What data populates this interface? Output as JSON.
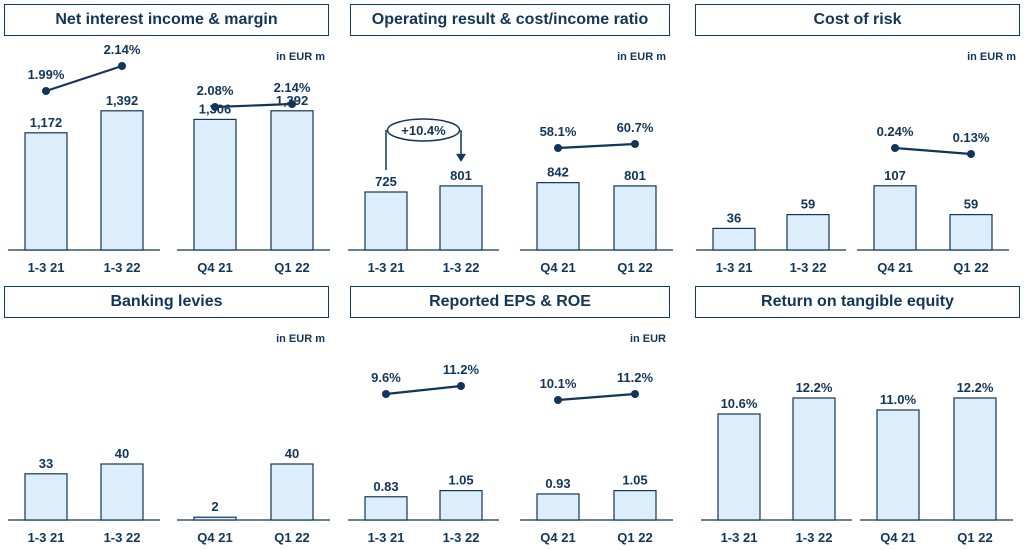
{
  "chart_data": [
    {
      "type": "bar",
      "title": "Net interest income & margin",
      "unit": "in EUR m",
      "groups": [
        {
          "categories": [
            "1-3 21",
            "1-3 22"
          ],
          "values": [
            1172,
            1392
          ],
          "value_labels": [
            "1,172",
            "1,392"
          ],
          "ratio": [
            1.99,
            2.14
          ],
          "ratio_labels": [
            "1.99%",
            "2.14%"
          ],
          "ylim": [
            0,
            1500
          ],
          "ratio_ylim": [
            0,
            2.5
          ]
        },
        {
          "categories": [
            "Q4 21",
            "Q1 22"
          ],
          "values": [
            1306,
            1392
          ],
          "value_labels": [
            "1,306",
            "1,392"
          ],
          "ratio": [
            2.08,
            2.14
          ],
          "ratio_labels": [
            "2.08%",
            "2.14%"
          ],
          "ylim": [
            0,
            1500
          ],
          "ratio_ylim": [
            0,
            2.5
          ]
        }
      ]
    },
    {
      "type": "bar",
      "title": "Operating result & cost/income ratio",
      "unit": "in EUR m",
      "growth_label": "+10.4%",
      "groups": [
        {
          "categories": [
            "1-3 21",
            "1-3 22"
          ],
          "values": [
            725,
            801
          ],
          "value_labels": [
            "725",
            "801"
          ],
          "ylim": [
            0,
            1000
          ]
        },
        {
          "categories": [
            "Q4 21",
            "Q1 22"
          ],
          "values": [
            842,
            801
          ],
          "value_labels": [
            "842",
            "801"
          ],
          "ratio": [
            58.1,
            60.7
          ],
          "ratio_labels": [
            "58.1%",
            "60.7%"
          ],
          "ylim": [
            0,
            1000
          ],
          "ratio_ylim": [
            0,
            80
          ]
        }
      ]
    },
    {
      "type": "bar",
      "title": "Cost of risk",
      "unit": "in EUR m",
      "groups": [
        {
          "categories": [
            "1-3 21",
            "1-3 22"
          ],
          "values": [
            36,
            59
          ],
          "value_labels": [
            "36",
            "59"
          ],
          "ylim": [
            0,
            200
          ]
        },
        {
          "categories": [
            "Q4 21",
            "Q1 22"
          ],
          "values": [
            107,
            59
          ],
          "value_labels": [
            "107",
            "59"
          ],
          "ratio": [
            0.24,
            0.13
          ],
          "ratio_labels": [
            "0.24%",
            "0.13%"
          ],
          "ylim": [
            0,
            200
          ],
          "ratio_ylim": [
            0,
            0.35
          ]
        }
      ]
    },
    {
      "type": "bar",
      "title": "Banking levies",
      "unit": "in EUR m",
      "groups": [
        {
          "categories": [
            "1-3 21",
            "1-3 22"
          ],
          "values": [
            33,
            40
          ],
          "value_labels": [
            "33",
            "40"
          ],
          "ylim": [
            0,
            100
          ]
        },
        {
          "categories": [
            "Q4 21",
            "Q1 22"
          ],
          "values": [
            2,
            40
          ],
          "value_labels": [
            "2",
            "40"
          ],
          "ylim": [
            0,
            100
          ]
        }
      ]
    },
    {
      "type": "bar",
      "title": "Reported EPS & ROE",
      "unit": "in EUR",
      "groups": [
        {
          "categories": [
            "1-3 21",
            "1-3 22"
          ],
          "values": [
            0.83,
            1.05
          ],
          "value_labels": [
            "0.83",
            "1.05"
          ],
          "ratio": [
            9.6,
            11.2
          ],
          "ratio_labels": [
            "9.6%",
            "11.2%"
          ],
          "ylim": [
            0,
            5
          ],
          "ratio_ylim": [
            0,
            14
          ]
        },
        {
          "categories": [
            "Q4 21",
            "Q1 22"
          ],
          "values": [
            0.93,
            1.05
          ],
          "value_labels": [
            "0.93",
            "1.05"
          ],
          "ratio": [
            10.1,
            11.2
          ],
          "ratio_labels": [
            "10.1%",
            "11.2%"
          ],
          "ylim": [
            0,
            5
          ],
          "ratio_ylim": [
            0,
            14
          ]
        }
      ]
    },
    {
      "type": "bar",
      "title": "Return on tangible equity",
      "unit": "",
      "groups": [
        {
          "categories": [
            "1-3 21",
            "1-3 22"
          ],
          "values": [
            10.6,
            12.2
          ],
          "value_labels": [
            "10.6%",
            "12.2%"
          ],
          "ylim": [
            0,
            15
          ]
        },
        {
          "categories": [
            "Q4 21",
            "Q1 22"
          ],
          "values": [
            11.0,
            12.2
          ],
          "value_labels": [
            "11.0%",
            "12.2%"
          ],
          "ylim": [
            0,
            15
          ]
        }
      ]
    }
  ]
}
